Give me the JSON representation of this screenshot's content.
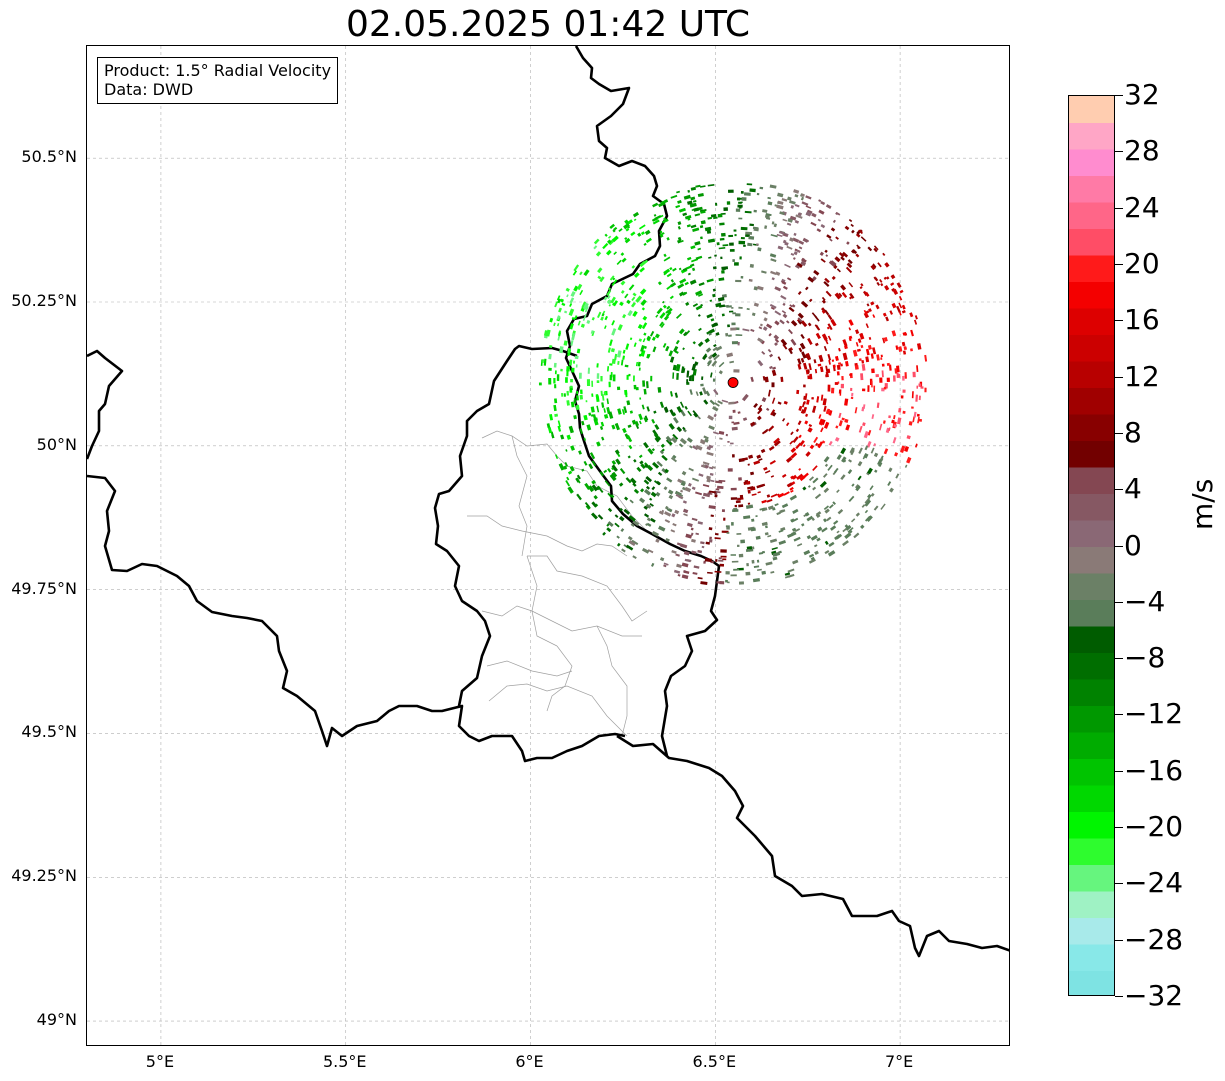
{
  "title": "02.05.2025 01:42 UTC",
  "info": {
    "product": "Product: 1.5° Radial Velocity",
    "data_source": "Data: DWD"
  },
  "map": {
    "lon_range": [
      4.8,
      7.3
    ],
    "lat_range": [
      48.955,
      50.695
    ],
    "gridlines": true,
    "lat_ticks": [
      {
        "value": 50.5,
        "label": "50.5°N"
      },
      {
        "value": 50.25,
        "label": "50.25°N"
      },
      {
        "value": 50.0,
        "label": "50°N"
      },
      {
        "value": 49.75,
        "label": "49.75°N"
      },
      {
        "value": 49.5,
        "label": "49.5°N"
      },
      {
        "value": 49.25,
        "label": "49.25°N"
      },
      {
        "value": 49.0,
        "label": "49°N"
      }
    ],
    "lon_ticks": [
      {
        "value": 5.0,
        "label": "5°E"
      },
      {
        "value": 5.5,
        "label": "5.5°E"
      },
      {
        "value": 6.0,
        "label": "6°E"
      },
      {
        "value": 6.5,
        "label": "6.5°E"
      },
      {
        "value": 7.0,
        "label": "7°E"
      }
    ],
    "radar_site": {
      "lon": 6.548,
      "lat": 50.11,
      "color": "#ff0000"
    }
  },
  "colorbar": {
    "unit": "m/s",
    "min": -32,
    "max": 32,
    "ticks": [
      "32",
      "28",
      "24",
      "20",
      "16",
      "12",
      "8",
      "4",
      "0",
      "−4",
      "−8",
      "−12",
      "−16",
      "−20",
      "−24",
      "−28",
      "−32"
    ],
    "colors_low_to_high": [
      "#7ee3e3",
      "#88e8e8",
      "#a8eaea",
      "#9ff2c4",
      "#66f57e",
      "#2efc2e",
      "#00f500",
      "#00d800",
      "#00c400",
      "#00ac00",
      "#009800",
      "#008200",
      "#006e00",
      "#005c00",
      "#5a7d5a",
      "#6b8066",
      "#8a7a77",
      "#8a6875",
      "#865863",
      "#844752",
      "#720000",
      "#880000",
      "#a00000",
      "#b80000",
      "#cc0000",
      "#dd0000",
      "#f40000",
      "#ff1a1a",
      "#ff4d66",
      "#ff6688",
      "#ff7aa6",
      "#ff8ccf",
      "#ffa6c6",
      "#ffcdb0"
    ]
  }
}
